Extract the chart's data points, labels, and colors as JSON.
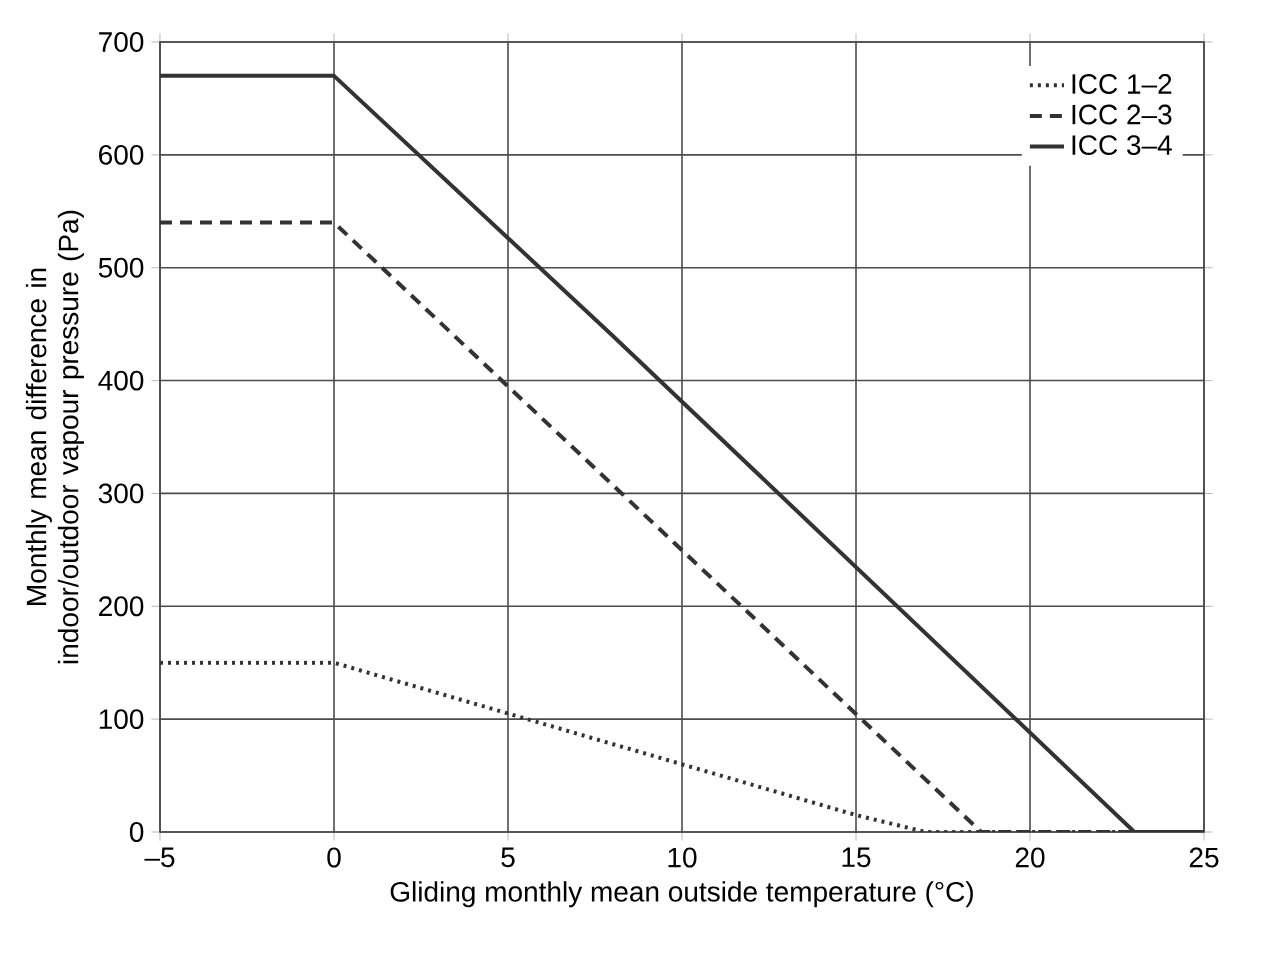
{
  "chart_data": {
    "type": "line",
    "xlabel": "Gliding monthly mean outside temperature (°C)",
    "ylabel": "Monthly mean difference in indoor/outdoor vapour pressure (Pa)",
    "xlim": [
      -5,
      25
    ],
    "ylim": [
      0,
      700
    ],
    "xticks": [
      {
        "value": -5,
        "label": "–5"
      },
      0,
      5,
      10,
      15,
      20,
      25
    ],
    "yticks": [
      0,
      100,
      200,
      300,
      400,
      500,
      600,
      700
    ],
    "grid": true,
    "legend": "top right",
    "series": [
      {
        "name": "ICC 1–2",
        "color": "#333333",
        "line_style": "dotted",
        "x": [
          -5,
          0,
          5,
          10,
          15,
          17,
          25
        ],
        "values": [
          150,
          150,
          105,
          60,
          15,
          0,
          0
        ]
      },
      {
        "name": "ICC 2–3",
        "color": "#333333",
        "line_style": "dashed",
        "x": [
          -5,
          0,
          18.6,
          25
        ],
        "values": [
          540,
          540,
          0,
          0
        ]
      },
      {
        "name": "ICC 3–4",
        "color": "#333333",
        "line_style": "solid",
        "x": [
          -5,
          0,
          8,
          23,
          25
        ],
        "values": [
          670,
          670,
          440,
          0,
          0
        ]
      }
    ]
  }
}
